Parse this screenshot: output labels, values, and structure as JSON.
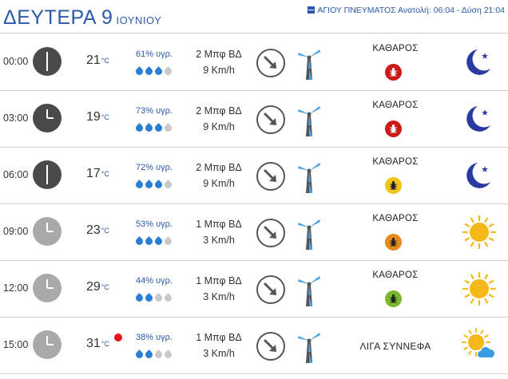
{
  "header": {
    "day_label": "ΔΕΥΤΕΡΑ 9",
    "month_label": "ΙΟΥΝΙΟΥ",
    "saint_text": "ΑΓΙΟΥ ΠΝΕΥΜΑΤΟΣ Ανατολή: 06:04  - Δύση 21:04",
    "calendar_icon": "calendar-icon"
  },
  "colors": {
    "accent_blue": "#2a5aa8",
    "clock_night": "#4a4a4a",
    "clock_day": "#a9a9a9",
    "drop_filled": "#2a7fd4",
    "drop_empty": "#c9c9c9",
    "uv_red": "#cc1a1a",
    "uv_yellow": "#f0c419",
    "uv_orange": "#e8891c",
    "uv_green": "#7ab82e",
    "hot_red": "#e6141b"
  },
  "rows": [
    {
      "time": "00:00",
      "clock": "night",
      "temp": "21",
      "unit": "°C",
      "hot": false,
      "humidity": "61% υγρ.",
      "drops_filled": 3,
      "wind_bf": "2 Μπφ ΒΔ",
      "wind_kmh": "9 Km/h",
      "condition": "ΚΑΘΑΡΟΣ",
      "uv_level": "red",
      "weather_icon": "moon-icon"
    },
    {
      "time": "03:00",
      "clock": "night",
      "temp": "19",
      "unit": "°C",
      "hot": false,
      "humidity": "73% υγρ.",
      "drops_filled": 3,
      "wind_bf": "2 Μπφ ΒΔ",
      "wind_kmh": "9 Km/h",
      "condition": "ΚΑΘΑΡΟΣ",
      "uv_level": "red",
      "weather_icon": "moon-icon"
    },
    {
      "time": "06:00",
      "clock": "night",
      "temp": "17",
      "unit": "°C",
      "hot": false,
      "humidity": "72% υγρ.",
      "drops_filled": 3,
      "wind_bf": "2 Μπφ ΒΔ",
      "wind_kmh": "9 Km/h",
      "condition": "ΚΑΘΑΡΟΣ",
      "uv_level": "yellow",
      "weather_icon": "moon-icon"
    },
    {
      "time": "09:00",
      "clock": "day",
      "temp": "23",
      "unit": "°C",
      "hot": false,
      "humidity": "53% υγρ.",
      "drops_filled": 3,
      "wind_bf": "1 Μπφ ΒΔ",
      "wind_kmh": "3 Km/h",
      "condition": "ΚΑΘΑΡΟΣ",
      "uv_level": "orange",
      "weather_icon": "sun-icon"
    },
    {
      "time": "12:00",
      "clock": "day",
      "temp": "29",
      "unit": "°C",
      "hot": false,
      "humidity": "44% υγρ.",
      "drops_filled": 2,
      "wind_bf": "1 Μπφ ΒΔ",
      "wind_kmh": "3 Km/h",
      "condition": "ΚΑΘΑΡΟΣ",
      "uv_level": "green",
      "weather_icon": "sun-icon"
    },
    {
      "time": "15:00",
      "clock": "day",
      "temp": "31",
      "unit": "°C",
      "hot": true,
      "humidity": "38% υγρ.",
      "drops_filled": 2,
      "wind_bf": "1 Μπφ ΒΔ",
      "wind_kmh": "3 Km/h",
      "condition": "ΛΙΓΑ ΣΥΝΝΕΦΑ",
      "uv_level": "",
      "weather_icon": "sun-cloud-icon"
    }
  ]
}
